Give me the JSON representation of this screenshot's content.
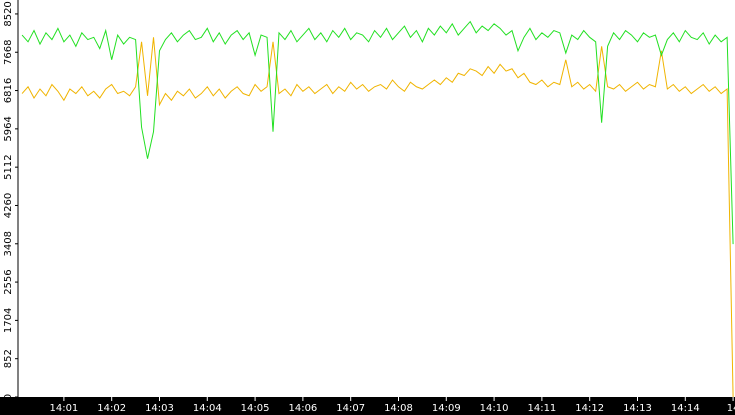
{
  "chart_data": {
    "type": "line",
    "x": [
      0.125,
      0.25,
      0.375,
      0.5,
      0.625,
      0.75,
      0.875,
      1,
      1.125,
      1.25,
      1.375,
      1.5,
      1.625,
      1.75,
      1.875,
      2,
      2.125,
      2.25,
      2.375,
      2.5,
      2.625,
      2.75,
      2.875,
      3,
      3.125,
      3.25,
      3.375,
      3.5,
      3.625,
      3.75,
      3.875,
      4,
      4.125,
      4.25,
      4.375,
      4.5,
      4.625,
      4.75,
      4.875,
      5,
      5.125,
      5.25,
      5.375,
      5.5,
      5.625,
      5.75,
      5.875,
      6,
      6.125,
      6.25,
      6.375,
      6.5,
      6.625,
      6.75,
      6.875,
      7,
      7.125,
      7.25,
      7.375,
      7.5,
      7.625,
      7.75,
      7.875,
      8,
      8.125,
      8.25,
      8.375,
      8.5,
      8.625,
      8.75,
      8.875,
      9,
      9.125,
      9.25,
      9.375,
      9.5,
      9.625,
      9.75,
      9.875,
      10,
      10.125,
      10.25,
      10.375,
      10.5,
      10.625,
      10.75,
      10.875,
      11,
      11.125,
      11.25,
      11.375,
      11.5,
      11.625,
      11.75,
      11.875,
      12,
      12.125,
      12.25,
      12.375,
      12.5,
      12.625,
      12.75,
      12.875,
      13,
      13.125,
      13.25,
      13.375,
      13.5,
      13.625,
      13.75,
      13.875,
      14,
      14.125,
      14.25,
      14.375,
      14.5,
      14.625,
      14.75,
      14.875,
      15
    ],
    "series": [
      {
        "color": "#22e022",
        "values": [
          8050,
          7900,
          8150,
          7850,
          8100,
          7950,
          8200,
          7900,
          8050,
          7800,
          8100,
          7950,
          8000,
          7750,
          8150,
          7500,
          8050,
          7850,
          8000,
          7950,
          6000,
          5300,
          5900,
          7700,
          7950,
          8100,
          7900,
          8050,
          8150,
          7950,
          8000,
          8200,
          7900,
          8100,
          7850,
          8050,
          8150,
          7950,
          8100,
          7600,
          8050,
          8000,
          5900,
          8100,
          7950,
          8150,
          7900,
          8050,
          8200,
          7950,
          8100,
          7900,
          8150,
          8000,
          8200,
          7950,
          8100,
          8050,
          7900,
          8150,
          8000,
          8200,
          7950,
          8100,
          8250,
          8000,
          8150,
          7900,
          8200,
          8050,
          8250,
          8100,
          8300,
          8050,
          8200,
          8350,
          8100,
          8250,
          8150,
          8300,
          8200,
          8050,
          8150,
          7700,
          8000,
          8200,
          7950,
          8100,
          8000,
          8150,
          8100,
          7650,
          8050,
          7950,
          8150,
          8000,
          7900,
          6100,
          7800,
          8100,
          7950,
          8150,
          8050,
          7900,
          8100,
          8000,
          8050,
          7600,
          7950,
          8100,
          7900,
          8150,
          8000,
          7950,
          8100,
          7850,
          8050,
          7900,
          8000,
          3400
        ]
      },
      {
        "color": "#f0b400",
        "values": [
          6750,
          6900,
          6650,
          6850,
          6700,
          6950,
          6800,
          6600,
          6850,
          6750,
          6900,
          6700,
          6800,
          6650,
          6850,
          6950,
          6750,
          6800,
          6700,
          6900,
          7900,
          6700,
          8000,
          6500,
          6750,
          6600,
          6800,
          6700,
          6850,
          6650,
          6750,
          6900,
          6700,
          6850,
          6650,
          6800,
          6900,
          6750,
          6700,
          6950,
          6800,
          6900,
          7900,
          6750,
          6850,
          6700,
          6950,
          6800,
          6900,
          6750,
          6850,
          6950,
          6750,
          6900,
          6800,
          7000,
          6850,
          6950,
          6800,
          6900,
          6950,
          6850,
          7050,
          6900,
          6800,
          7000,
          6900,
          6850,
          6950,
          7050,
          6950,
          7100,
          7000,
          7200,
          7150,
          7300,
          7250,
          7150,
          7350,
          7200,
          7400,
          7250,
          7300,
          7100,
          7200,
          7000,
          6950,
          7050,
          6900,
          7000,
          6950,
          7500,
          6900,
          7000,
          6850,
          6950,
          6800,
          7800,
          6900,
          6850,
          6950,
          6800,
          6900,
          7000,
          6850,
          6950,
          6900,
          7700,
          6850,
          6950,
          6800,
          6900,
          6750,
          6850,
          6950,
          6800,
          6900,
          6750,
          6850,
          0
        ]
      }
    ],
    "xlim": [
      0.04,
      15.04
    ],
    "xticks": [
      {
        "value": 1,
        "label": "14:01"
      },
      {
        "value": 2,
        "label": "14:02"
      },
      {
        "value": 3,
        "label": "14:03"
      },
      {
        "value": 4,
        "label": "14:04"
      },
      {
        "value": 5,
        "label": "14:05"
      },
      {
        "value": 6,
        "label": "14:06"
      },
      {
        "value": 7,
        "label": "14:07"
      },
      {
        "value": 8,
        "label": "14:08"
      },
      {
        "value": 9,
        "label": "14:09"
      },
      {
        "value": 10,
        "label": "14:10"
      },
      {
        "value": 11,
        "label": "14:11"
      },
      {
        "value": 12,
        "label": "14:12"
      },
      {
        "value": 13,
        "label": "14:13"
      },
      {
        "value": 14,
        "label": "14:14"
      },
      {
        "value": 15,
        "label": "14"
      }
    ],
    "ylim": [
      0,
      8830
    ],
    "yticks": [
      0,
      852,
      1704,
      2556,
      3408,
      4260,
      5112,
      5964,
      6816,
      7668,
      8520
    ]
  }
}
